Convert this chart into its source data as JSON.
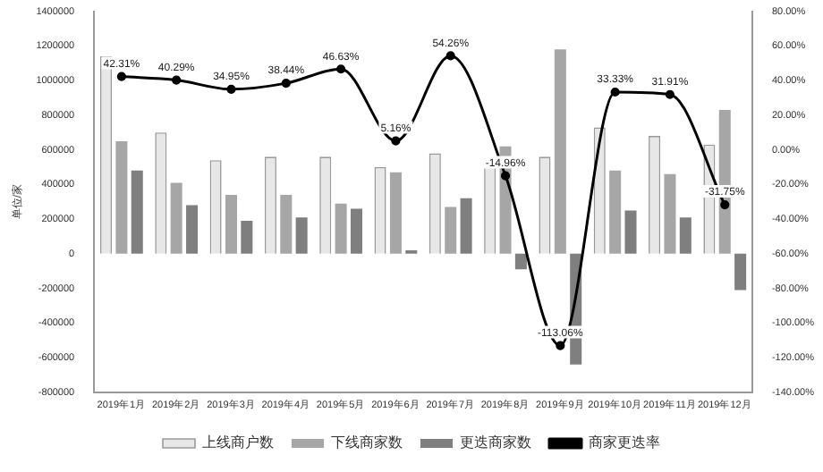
{
  "chart_data": {
    "type": "bar",
    "ylabel": "单位/家",
    "categories": [
      "2019年1月",
      "2019年2月",
      "2019年3月",
      "2019年4月",
      "2019年5月",
      "2019年6月",
      "2019年7月",
      "2019年8月",
      "2019年9月",
      "2019年10月",
      "2019年11月",
      "2019年12月"
    ],
    "series": [
      {
        "name": "上线商户数",
        "color": "#e7e7e7",
        "values": [
          1140000,
          700000,
          540000,
          560000,
          560000,
          500000,
          580000,
          540000,
          560000,
          730000,
          680000,
          630000
        ]
      },
      {
        "name": "下线商家数",
        "color": "#a6a6a6",
        "values": [
          650000,
          410000,
          340000,
          340000,
          290000,
          470000,
          270000,
          620000,
          1180000,
          480000,
          460000,
          830000
        ]
      },
      {
        "name": "更迭商家数",
        "color": "#7f7f7f",
        "values": [
          480000,
          280000,
          190000,
          210000,
          260000,
          20000,
          320000,
          -90000,
          -640000,
          250000,
          210000,
          -210000
        ]
      },
      {
        "name": "商家更迭率",
        "type": "line",
        "axis": "y2",
        "color": "#000000",
        "marker": "circle",
        "values": [
          42.31,
          40.29,
          34.95,
          38.44,
          46.63,
          5.16,
          54.26,
          -14.96,
          -113.06,
          33.33,
          31.91,
          -31.75
        ],
        "value_labels": [
          "42.31%",
          "40.29%",
          "34.95%",
          "38.44%",
          "46.63%",
          "5.16%",
          "54.26%",
          "-14.96%",
          "-113.06%",
          "33.33%",
          "31.91%",
          "-31.75%"
        ]
      }
    ],
    "ylim": [
      -800000,
      1400000
    ],
    "yticks": [
      -800000,
      -600000,
      -400000,
      -200000,
      0,
      200000,
      400000,
      600000,
      800000,
      1000000,
      1200000,
      1400000
    ],
    "y2lim": [
      -140,
      80
    ],
    "y2ticks": [
      {
        "value": -140,
        "label": "-140.00%"
      },
      {
        "value": -120,
        "label": "-120.00%"
      },
      {
        "value": -100,
        "label": "-100.00%"
      },
      {
        "value": -80,
        "label": "-80.00%"
      },
      {
        "value": -60,
        "label": "-60.00%"
      },
      {
        "value": -40,
        "label": "-40.00%"
      },
      {
        "value": -20,
        "label": "-20.00%"
      },
      {
        "value": 0,
        "label": "0.00%"
      },
      {
        "value": 20,
        "label": "20.00%"
      },
      {
        "value": 40,
        "label": "40.00%"
      },
      {
        "value": 60,
        "label": "60.00%"
      },
      {
        "value": 80,
        "label": "80.00%"
      }
    ],
    "grid": false,
    "legend": "bottom"
  }
}
